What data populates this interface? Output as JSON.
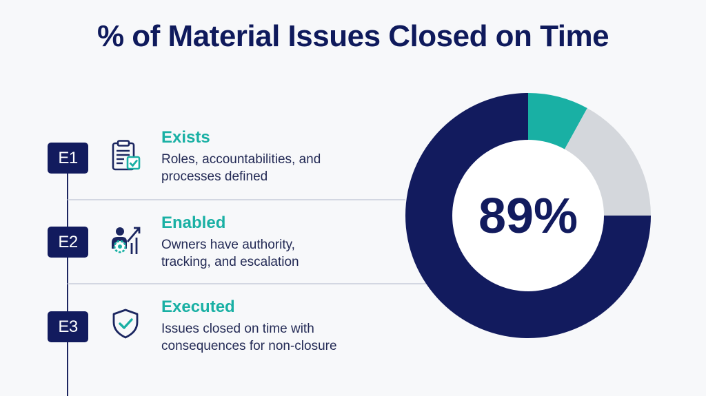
{
  "title": "% of Material Issues Closed on Time",
  "items": [
    {
      "code": "E1",
      "icon": "clipboard-check-icon",
      "heading": "Exists",
      "line1": "Roles, accountabilities, and",
      "line2": "processes defined"
    },
    {
      "code": "E2",
      "icon": "people-growth-icon",
      "heading": "Enabled",
      "line1": "Owners have authority,",
      "line2": "tracking, and escalation"
    },
    {
      "code": "E3",
      "icon": "shield-check-icon",
      "heading": "Executed",
      "line1": "Issues closed on time with",
      "line2": "consequences for non-closure"
    }
  ],
  "chart_data": {
    "type": "pie",
    "center_label": "89%",
    "slices": [
      {
        "value": 8,
        "color": "#19b0a4"
      },
      {
        "value": 17,
        "color": "#d4d7dc"
      },
      {
        "value": 75,
        "color": "#121b5e"
      }
    ]
  },
  "colors": {
    "navy": "#121b5e",
    "teal": "#19b0a4",
    "gray": "#d4d7dc"
  }
}
